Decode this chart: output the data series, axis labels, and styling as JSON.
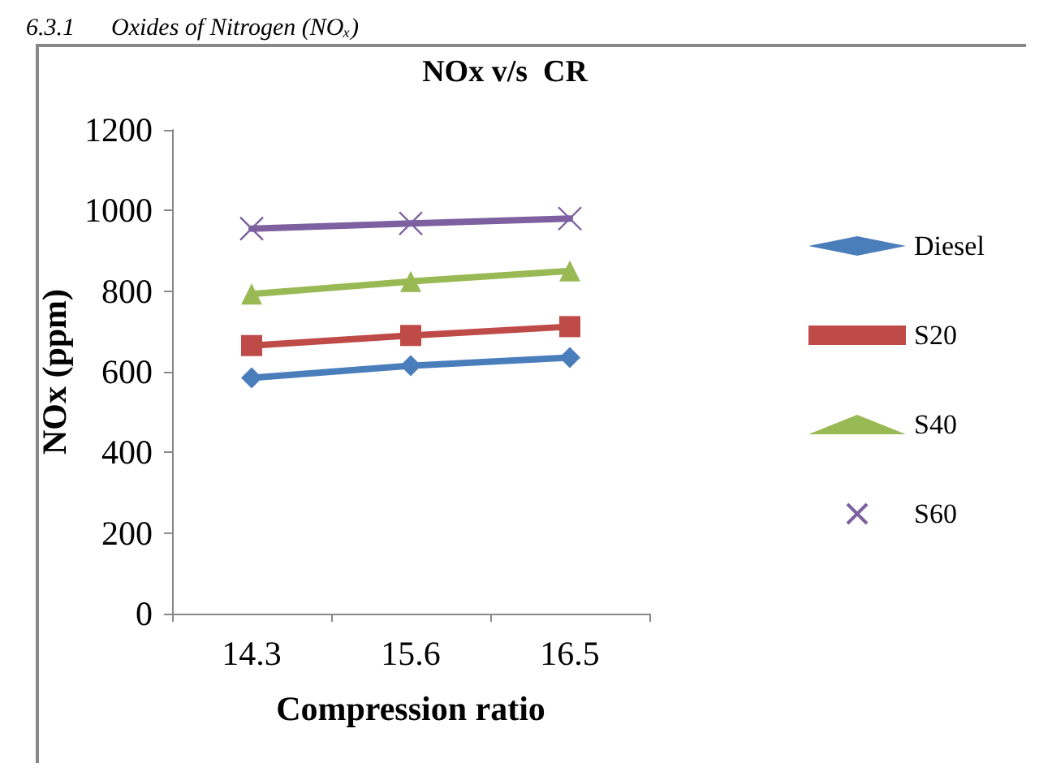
{
  "chart_data": {
    "type": "line",
    "title": "NOx v/s  CR",
    "xlabel": "Compression ratio",
    "ylabel": "NOx (ppm)",
    "annotations": [
      "6.3.1      Oxides of Nitrogen (NOₓ)"
    ],
    "categories": [
      "14.3",
      "15.6",
      "16.5"
    ],
    "series": [
      {
        "name": "Diesel",
        "color": "#4a7ebb",
        "marker": "diamond",
        "values": [
          585,
          615,
          635
        ]
      },
      {
        "name": "S20",
        "color": "#be4b48",
        "marker": "square",
        "values": [
          665,
          690,
          712
        ]
      },
      {
        "name": "S40",
        "color": "#98b954",
        "marker": "triangle",
        "values": [
          793,
          824,
          850
        ]
      },
      {
        "name": "S60",
        "color": "#7d60a0",
        "marker": "cross",
        "values": [
          955,
          968,
          980
        ]
      }
    ],
    "ylim": [
      0,
      1200
    ],
    "yticks": [
      0,
      200,
      400,
      600,
      800,
      1000,
      1200
    ],
    "grid": false,
    "legend": "right",
    "line_style": "solid"
  }
}
